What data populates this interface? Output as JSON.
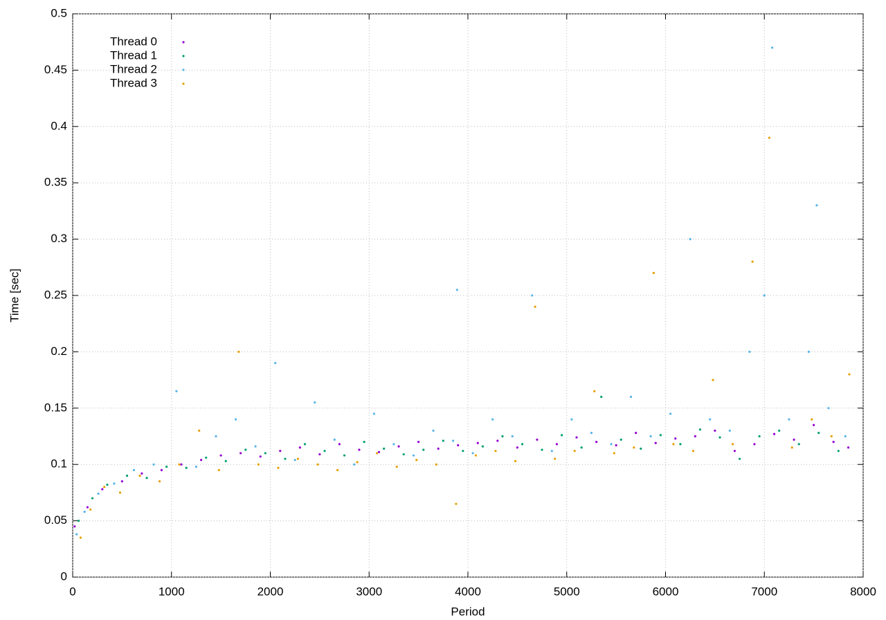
{
  "chart_data": {
    "type": "scatter",
    "x_label": "Period",
    "y_label": "Time [sec]",
    "xlim": [
      0,
      8000
    ],
    "ylim": [
      0,
      0.5
    ],
    "xticks": [
      0,
      1000,
      2000,
      3000,
      4000,
      5000,
      6000,
      7000,
      8000
    ],
    "yticks": [
      0,
      0.05,
      0.1,
      0.15,
      0.2,
      0.25,
      0.3,
      0.35,
      0.4,
      0.45,
      0.5
    ],
    "grid": true,
    "legend": "top left",
    "series": [
      {
        "name": "Thread 0",
        "color": "#9400d3",
        "x": [
          20,
          150,
          300,
          500,
          700,
          900,
          1100,
          1300,
          1500,
          1700,
          1900,
          2100,
          2300,
          2500,
          2700,
          2900,
          3100,
          3300,
          3500,
          3700,
          3900,
          4100,
          4300,
          4500,
          4700,
          4900,
          5100,
          5300,
          5500,
          5700,
          5900,
          6100,
          6300,
          6500,
          6700,
          6900,
          7100,
          7300,
          7500,
          7700,
          7850
        ],
        "values": [
          0.045,
          0.062,
          0.078,
          0.085,
          0.092,
          0.095,
          0.1,
          0.104,
          0.108,
          0.11,
          0.107,
          0.112,
          0.115,
          0.109,
          0.118,
          0.113,
          0.111,
          0.116,
          0.12,
          0.114,
          0.117,
          0.119,
          0.121,
          0.115,
          0.122,
          0.118,
          0.124,
          0.12,
          0.117,
          0.128,
          0.119,
          0.123,
          0.125,
          0.13,
          0.112,
          0.118,
          0.127,
          0.122,
          0.135,
          0.12,
          0.115
        ]
      },
      {
        "name": "Thread 1",
        "color": "#009e73",
        "x": [
          60,
          200,
          350,
          550,
          750,
          950,
          1150,
          1350,
          1550,
          1750,
          1950,
          2150,
          2350,
          2550,
          2750,
          2950,
          3150,
          3350,
          3550,
          3750,
          3950,
          4150,
          4350,
          4550,
          4750,
          4950,
          5150,
          5350,
          5550,
          5750,
          5950,
          6150,
          6350,
          6550,
          6750,
          6950,
          7150,
          7350,
          7550,
          7750
        ],
        "values": [
          0.05,
          0.07,
          0.082,
          0.09,
          0.088,
          0.098,
          0.097,
          0.106,
          0.103,
          0.113,
          0.11,
          0.105,
          0.118,
          0.112,
          0.108,
          0.12,
          0.114,
          0.109,
          0.113,
          0.121,
          0.112,
          0.116,
          0.125,
          0.118,
          0.113,
          0.126,
          0.115,
          0.16,
          0.122,
          0.114,
          0.126,
          0.118,
          0.131,
          0.124,
          0.105,
          0.125,
          0.13,
          0.118,
          0.128,
          0.112
        ]
      },
      {
        "name": "Thread 2",
        "color": "#56b4e9",
        "x": [
          40,
          120,
          260,
          420,
          620,
          820,
          1050,
          1250,
          1450,
          1650,
          1850,
          2050,
          2250,
          2450,
          2650,
          2850,
          3050,
          3250,
          3450,
          3650,
          3850,
          3890,
          4050,
          4250,
          4450,
          4650,
          4850,
          5050,
          5250,
          5450,
          5650,
          5850,
          6050,
          6250,
          6450,
          6650,
          6850,
          7000,
          7080,
          7250,
          7450,
          7530,
          7650,
          7820
        ],
        "values": [
          0.038,
          0.058,
          0.074,
          0.083,
          0.095,
          0.1,
          0.165,
          0.098,
          0.125,
          0.14,
          0.116,
          0.19,
          0.104,
          0.155,
          0.122,
          0.1,
          0.145,
          0.118,
          0.108,
          0.13,
          0.121,
          0.255,
          0.11,
          0.14,
          0.125,
          0.25,
          0.112,
          0.14,
          0.128,
          0.118,
          0.16,
          0.125,
          0.145,
          0.3,
          0.14,
          0.13,
          0.2,
          0.25,
          0.47,
          0.14,
          0.2,
          0.33,
          0.15,
          0.125
        ]
      },
      {
        "name": "Thread 3",
        "color": "#e69f00",
        "x": [
          80,
          180,
          320,
          480,
          680,
          880,
          1080,
          1280,
          1480,
          1680,
          1880,
          2080,
          2280,
          2480,
          2680,
          2880,
          3080,
          3280,
          3480,
          3680,
          3880,
          4080,
          4280,
          4480,
          4680,
          4880,
          5080,
          5280,
          5480,
          5680,
          5880,
          6080,
          6280,
          6480,
          6680,
          6880,
          7050,
          7280,
          7480,
          7680,
          7860
        ],
        "values": [
          0.035,
          0.06,
          0.08,
          0.075,
          0.09,
          0.085,
          0.1,
          0.13,
          0.095,
          0.2,
          0.1,
          0.097,
          0.105,
          0.1,
          0.095,
          0.102,
          0.11,
          0.098,
          0.104,
          0.1,
          0.065,
          0.108,
          0.112,
          0.103,
          0.24,
          0.105,
          0.112,
          0.165,
          0.11,
          0.115,
          0.27,
          0.118,
          0.112,
          0.175,
          0.118,
          0.28,
          0.39,
          0.115,
          0.14,
          0.125,
          0.18
        ]
      }
    ]
  }
}
